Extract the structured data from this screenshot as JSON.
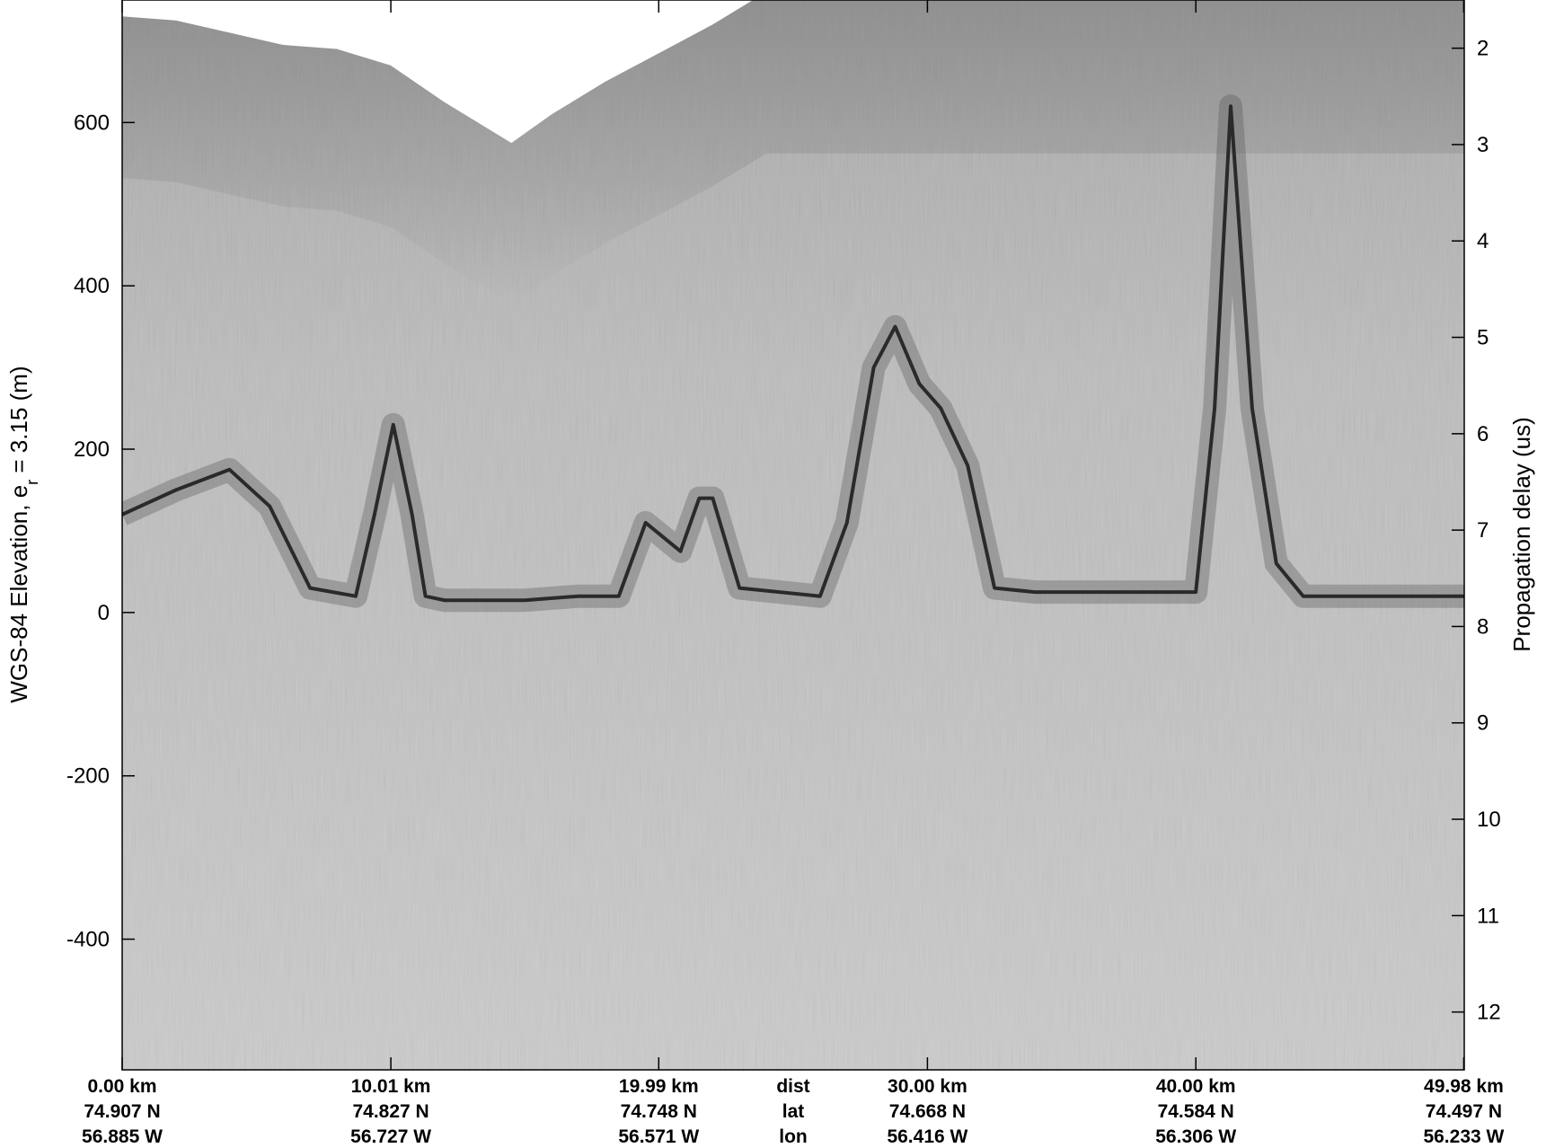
{
  "figure": {
    "type": "radargram",
    "left_axis": {
      "title_main": "WGS-84 Elevation, e",
      "title_sub": "r",
      "title_tail": " = 3.15 (m)",
      "unit": "m",
      "ticks": [
        "600",
        "400",
        "200",
        "0",
        "-200",
        "-400"
      ],
      "range": [
        -560,
        750
      ]
    },
    "right_axis": {
      "title": "Propagation delay (us)",
      "ticks": [
        "2",
        "3",
        "4",
        "5",
        "6",
        "7",
        "8",
        "9",
        "10",
        "11",
        "12"
      ],
      "unit": "us"
    },
    "bottom_labels": [
      {
        "dist": "0.00 km",
        "lat": "74.907 N",
        "lon": "56.885 W"
      },
      {
        "dist": "10.01 km",
        "lat": "74.827 N",
        "lon": "56.727 W"
      },
      {
        "dist": "19.99 km",
        "lat": "74.748 N",
        "lon": "56.571 W"
      },
      {
        "dist": "dist",
        "lat": "lat",
        "lon": "lon"
      },
      {
        "dist": "30.00 km",
        "lat": "74.668 N",
        "lon": "56.416 W"
      },
      {
        "dist": "40.00 km",
        "lat": "74.584 N",
        "lon": "56.306 W"
      },
      {
        "dist": "49.98 km",
        "lat": "74.497 N",
        "lon": "56.233 W"
      }
    ],
    "profile": {
      "distance_km": [
        0,
        2,
        4,
        5.5,
        7,
        8.7,
        9.4,
        10.1,
        10.8,
        11.3,
        12,
        15,
        17,
        18.5,
        19.5,
        20.8,
        21.5,
        22,
        23,
        26,
        27,
        28,
        28.8,
        29.7,
        30.5,
        31.5,
        32.5,
        34,
        40,
        40.7,
        41.3,
        42.1,
        43,
        44,
        50
      ],
      "elevation_m": [
        120,
        150,
        175,
        130,
        30,
        20,
        120,
        230,
        120,
        20,
        15,
        15,
        20,
        20,
        110,
        75,
        140,
        140,
        30,
        20,
        110,
        300,
        350,
        280,
        250,
        180,
        30,
        25,
        25,
        250,
        620,
        250,
        60,
        20,
        20
      ]
    },
    "surface": {
      "distance_km": [
        0,
        2,
        4,
        6,
        8,
        10,
        12,
        14,
        14.5,
        16,
        18,
        20,
        22,
        24,
        26,
        50
      ],
      "elevation_m": [
        730,
        725,
        710,
        695,
        690,
        670,
        625,
        585,
        575,
        610,
        650,
        685,
        720,
        760,
        760,
        760
      ]
    },
    "colors": {
      "background": "#ffffff",
      "axis": "#000000",
      "noise_base": "#b9b9b9",
      "reflector": "#2a2a2a"
    }
  }
}
